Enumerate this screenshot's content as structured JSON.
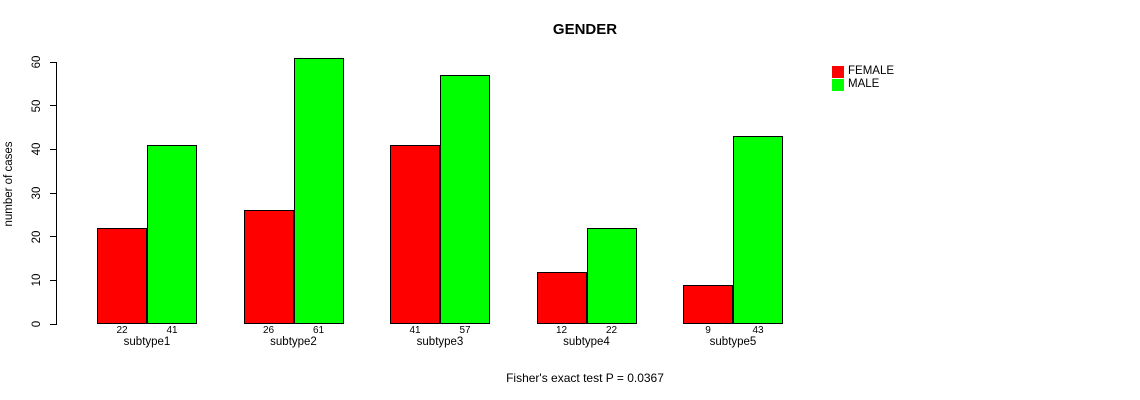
{
  "chart_data": {
    "type": "bar",
    "title": "GENDER",
    "xlabel": "",
    "ylabel": "number of cases",
    "categories": [
      "subtype1",
      "subtype2",
      "subtype3",
      "subtype4",
      "subtype5"
    ],
    "series": [
      {
        "name": "FEMALE",
        "color": "#ff0000",
        "values": [
          22,
          26,
          41,
          12,
          9
        ]
      },
      {
        "name": "MALE",
        "color": "#00ff00",
        "values": [
          41,
          61,
          57,
          22,
          43
        ]
      }
    ],
    "ylim": [
      0,
      60
    ],
    "yticks": [
      0,
      10,
      20,
      30,
      40,
      50,
      60
    ],
    "grid": false,
    "legend_position": "top-right",
    "bar_value_labels": true,
    "annotation": "Fisher's exact test P = 0.0367"
  }
}
